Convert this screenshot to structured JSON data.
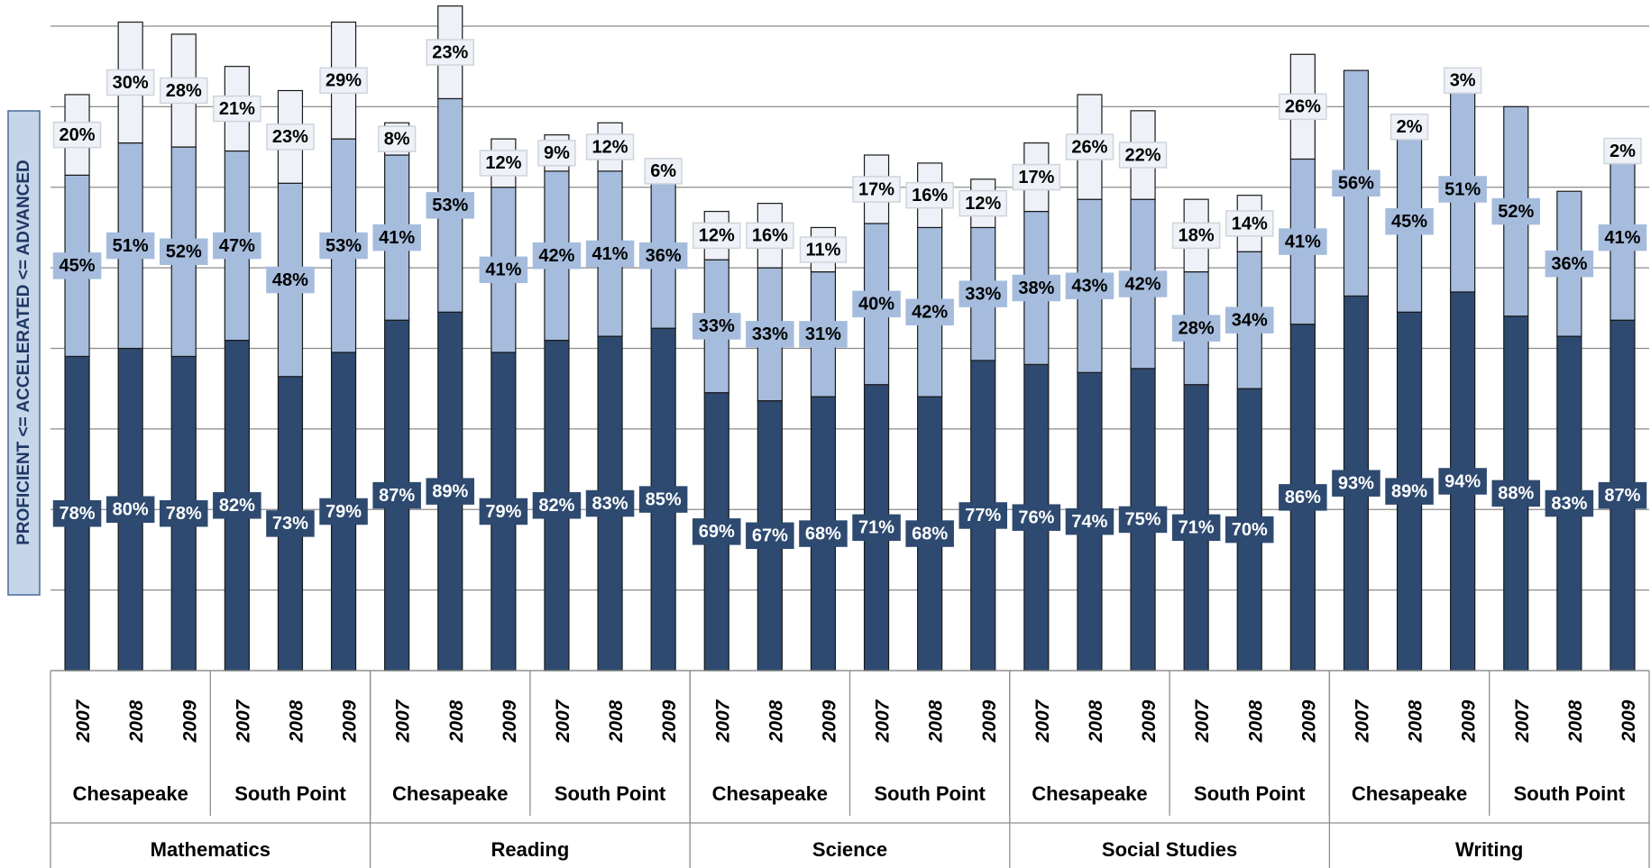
{
  "chart_data": {
    "type": "stacked_bar",
    "y_label": "PROFICIENT <= ACCELERATED <= ADVANCED",
    "categories": [
      "2007",
      "2008",
      "2009",
      "2007",
      "2008",
      "2009",
      "2007",
      "2008",
      "2009",
      "2007",
      "2008",
      "2009",
      "2007",
      "2008",
      "2009",
      "2007",
      "2008",
      "2009",
      "2007",
      "2008",
      "2009",
      "2007",
      "2008",
      "2009",
      "2007",
      "2008",
      "2009",
      "2007",
      "2008",
      "2009"
    ],
    "schools": [
      "Chesapeake",
      "South Point",
      "Chesapeake",
      "South Point",
      "Chesapeake",
      "South Point",
      "Chesapeake",
      "South Point",
      "Chesapeake",
      "South Point"
    ],
    "subjects": [
      "Mathematics",
      "Reading",
      "Science",
      "Social Studies",
      "Writing"
    ],
    "series": [
      {
        "color": "#2e4a70",
        "values": [
          78,
          80,
          78,
          82,
          73,
          79,
          87,
          89,
          79,
          82,
          83,
          85,
          69,
          67,
          68,
          71,
          68,
          77,
          76,
          74,
          75,
          71,
          70,
          86,
          93,
          89,
          94,
          88,
          83,
          87
        ],
        "value_labels": [
          "78%",
          "80%",
          "78%",
          "82%",
          "73%",
          "79%",
          "87%",
          "89%",
          "79%",
          "82%",
          "83%",
          "85%",
          "69%",
          "67%",
          "68%",
          "71%",
          "68%",
          "77%",
          "76%",
          "74%",
          "75%",
          "71%",
          "70%",
          "86%",
          "93%",
          "89%",
          "94%",
          "88%",
          "83%",
          "87%"
        ]
      },
      {
        "color": "#a5bcdd",
        "values": [
          45,
          51,
          52,
          47,
          48,
          53,
          41,
          53,
          41,
          42,
          41,
          36,
          33,
          33,
          31,
          40,
          42,
          33,
          38,
          43,
          42,
          28,
          34,
          41,
          56,
          45,
          51,
          52,
          36,
          41
        ],
        "value_labels": [
          "45%",
          "51%",
          "52%",
          "47%",
          "48%",
          "53%",
          "41%",
          "53%",
          "41%",
          "42%",
          "41%",
          "36%",
          "33%",
          "33%",
          "31%",
          "40%",
          "42%",
          "33%",
          "38%",
          "43%",
          "42%",
          "28%",
          "34%",
          "41%",
          "56%",
          "45%",
          "51%",
          "52%",
          "36%",
          "41%"
        ]
      },
      {
        "color": "#eef2f8",
        "values": [
          20,
          30,
          28,
          21,
          23,
          29,
          8,
          23,
          12,
          9,
          12,
          6,
          12,
          16,
          11,
          17,
          16,
          12,
          17,
          26,
          22,
          18,
          14,
          26,
          null,
          2,
          3,
          null,
          null,
          2
        ],
        "value_labels": [
          "20%",
          "30%",
          "28%",
          "21%",
          "23%",
          "29%",
          "8%",
          "23%",
          "12%",
          "9%",
          "12%",
          "6%",
          "12%",
          "16%",
          "11%",
          "17%",
          "16%",
          "12%",
          "17%",
          "26%",
          "22%",
          "18%",
          "14%",
          "26%",
          null,
          "2%",
          "3%",
          null,
          null,
          "2%"
        ]
      }
    ],
    "ylim": [
      0,
      160
    ],
    "yticks": [
      0,
      20,
      40,
      60,
      80,
      100,
      120,
      140,
      160
    ],
    "grid": true
  }
}
